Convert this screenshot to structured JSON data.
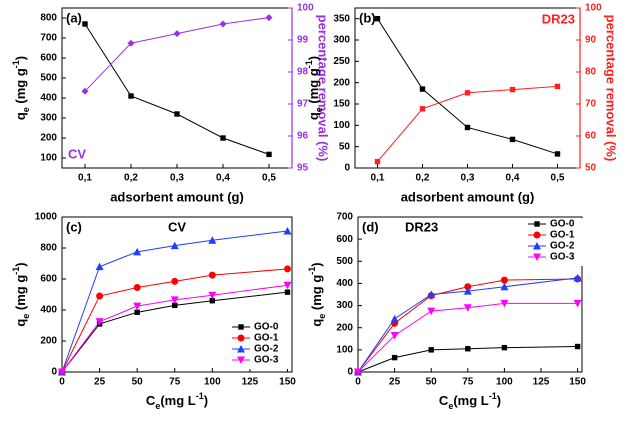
{
  "chart_data": [
    {
      "type": "line",
      "panel_label": "(a)",
      "title": "CV",
      "title_color": "#9b30e0",
      "x_label": "adsorbent amount (g)",
      "y_label": {
        "text": "q",
        "sub": "e",
        "unit": " (mg g",
        "sup": "-1",
        "end": ")"
      },
      "y2_label": "percentage removal (%)",
      "y2color": "#9b30e0",
      "x": [
        0.1,
        0.2,
        0.3,
        0.4,
        0.5
      ],
      "xlim": [
        0.05,
        0.55
      ],
      "xticks": [
        {
          "value": 0.1,
          "label": "0,1"
        },
        {
          "value": 0.2,
          "label": "0,2"
        },
        {
          "value": 0.3,
          "label": "0,3"
        },
        {
          "value": 0.4,
          "label": "0,4"
        },
        {
          "value": 0.5,
          "label": "0,5"
        }
      ],
      "ylim": [
        50,
        850
      ],
      "yticks": [
        100,
        200,
        300,
        400,
        500,
        600,
        700,
        800
      ],
      "y2lim": [
        95,
        100
      ],
      "y2ticks": [
        95,
        96,
        97,
        98,
        99,
        100
      ],
      "series": [
        {
          "color": "#000000",
          "marker": "square",
          "values": [
            770,
            410,
            320,
            200,
            118
          ]
        },
        {
          "color": "#9b30e0",
          "marker": "diamond",
          "axis": "y2",
          "values": [
            97.4,
            98.9,
            99.2,
            99.5,
            99.7
          ]
        }
      ]
    },
    {
      "type": "line",
      "panel_label": "(b)",
      "title": "DR23",
      "title_color": "#ff2020",
      "x_label": "adsorbent amount (g)",
      "y_label": {
        "text": "q",
        "sub": "e",
        "unit": " (mg g",
        "sup": "-1",
        "end": ")"
      },
      "y2_label": "percentage removal (%)",
      "y2color": "#ff2020",
      "x": [
        0.1,
        0.2,
        0.3,
        0.4,
        0.5
      ],
      "xlim": [
        0.05,
        0.55
      ],
      "xticks": [
        {
          "value": 0.1,
          "label": "0,1"
        },
        {
          "value": 0.2,
          "label": "0,2"
        },
        {
          "value": 0.3,
          "label": "0,3"
        },
        {
          "value": 0.4,
          "label": "0,4"
        },
        {
          "value": 0.5,
          "label": "0,5"
        }
      ],
      "ylim": [
        0,
        375
      ],
      "yticks": [
        0,
        50,
        100,
        150,
        200,
        250,
        300,
        350
      ],
      "y2lim": [
        50,
        100
      ],
      "y2ticks": [
        50,
        60,
        70,
        80,
        90,
        100
      ],
      "series": [
        {
          "color": "#000000",
          "marker": "square",
          "values": [
            350,
            185,
            95,
            67,
            33
          ]
        },
        {
          "color": "#ff2020",
          "marker": "square",
          "axis": "y2",
          "values": [
            52,
            68.5,
            73.5,
            74.5,
            75.5
          ]
        }
      ]
    },
    {
      "type": "line",
      "panel_label": "(c)",
      "title": "CV",
      "title_color": "#000000",
      "x_label": {
        "text": "C",
        "sub": "e",
        "unit": "(mg L",
        "sup": "-1",
        "end": ")"
      },
      "y_label": {
        "text": "q",
        "sub": "e",
        "unit": " (mg g",
        "sup": "-1",
        "end": ")"
      },
      "x": [
        0,
        25,
        50,
        75,
        100,
        150
      ],
      "xlim": [
        0,
        153
      ],
      "xticks": [
        0,
        25,
        50,
        75,
        100,
        125,
        150
      ],
      "ylim": [
        0,
        1000
      ],
      "yticks": [
        0,
        200,
        400,
        600,
        800,
        1000
      ],
      "legend": "lower right",
      "series": [
        {
          "name": "GO-0",
          "color": "#000000",
          "marker": "square",
          "values": [
            0,
            310,
            385,
            430,
            460,
            515
          ]
        },
        {
          "name": "GO-1",
          "color": "#ff0000",
          "marker": "circle",
          "values": [
            0,
            490,
            545,
            585,
            625,
            665
          ]
        },
        {
          "name": "GO-2",
          "color": "#1f3fff",
          "marker": "triangle",
          "values": [
            0,
            680,
            775,
            815,
            850,
            910
          ]
        },
        {
          "name": "GO-3",
          "color": "#ff00ff",
          "marker": "triangle-down",
          "values": [
            0,
            325,
            425,
            465,
            495,
            560
          ]
        }
      ]
    },
    {
      "type": "line",
      "panel_label": "(d)",
      "title": "DR23",
      "title_color": "#000000",
      "x_label": {
        "text": "C",
        "sub": "e",
        "unit": "(mg L",
        "sup": "-1",
        "end": ")"
      },
      "y_label": {
        "text": "q",
        "sub": "e",
        "unit": " (mg g",
        "sup": "-1",
        "end": ")"
      },
      "x": [
        0,
        25,
        50,
        75,
        100,
        150
      ],
      "xlim": [
        0,
        153
      ],
      "xticks": [
        0,
        25,
        50,
        75,
        100,
        125,
        150
      ],
      "ylim": [
        0,
        700
      ],
      "yticks": [
        0,
        100,
        200,
        300,
        400,
        500,
        600,
        700
      ],
      "legend": "upper right",
      "series": [
        {
          "name": "GO-0",
          "color": "#000000",
          "marker": "square",
          "values": [
            0,
            65,
            100,
            105,
            110,
            115
          ]
        },
        {
          "name": "GO-1",
          "color": "#ff0000",
          "marker": "circle",
          "values": [
            0,
            220,
            345,
            385,
            415,
            420
          ]
        },
        {
          "name": "GO-2",
          "color": "#1f3fff",
          "marker": "triangle",
          "values": [
            0,
            240,
            350,
            365,
            385,
            425
          ]
        },
        {
          "name": "GO-3",
          "color": "#ff00ff",
          "marker": "triangle-down",
          "values": [
            0,
            165,
            275,
            290,
            310,
            310
          ]
        }
      ]
    }
  ]
}
